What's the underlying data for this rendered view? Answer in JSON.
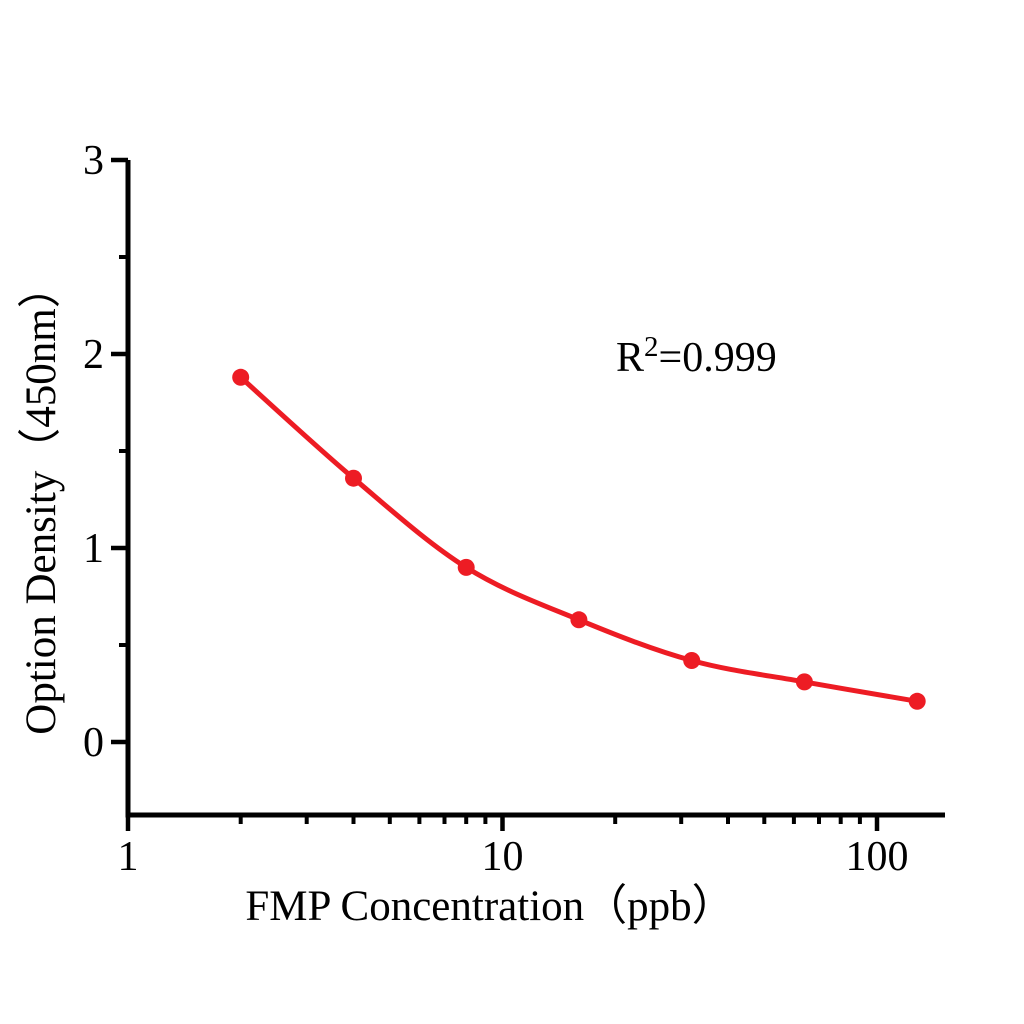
{
  "figure": {
    "background_color": "#ffffff",
    "axis_color": "#000000",
    "series_color": "#ed1c24"
  },
  "chart_data": {
    "type": "scatter",
    "subtype": "standard-curve-with-smooth-fit-line",
    "x_scale": "log10",
    "x": [
      2,
      4,
      8,
      16,
      32,
      64,
      128
    ],
    "y": [
      1.88,
      1.36,
      0.9,
      0.63,
      0.42,
      0.31,
      0.21
    ],
    "marker": "filled-circle",
    "line": "smooth-curve-through-points",
    "title": "",
    "xlabel": "FMP Concentration（ppb）",
    "ylabel": "Option Density（450nm）",
    "x_ticks": {
      "major": [
        1,
        10,
        100
      ],
      "labels": [
        "1",
        "10",
        "100"
      ],
      "minor": [
        2,
        3,
        4,
        5,
        6,
        7,
        8,
        9,
        20,
        30,
        40,
        50,
        60,
        70,
        80,
        90
      ]
    },
    "y_ticks": {
      "major": [
        0,
        1,
        2,
        3
      ],
      "labels": [
        "0",
        "1",
        "2",
        "3"
      ],
      "minor": [
        0.5,
        1.5,
        2.5
      ]
    },
    "xlim_log10": [
      0,
      2.18
    ],
    "ylim": [
      -0.39,
      3
    ],
    "grid": false,
    "legend": "none",
    "annotation": {
      "prefix": "R",
      "exponent": "2",
      "suffix": "=0.999",
      "full_text": "R2=0.999"
    }
  }
}
